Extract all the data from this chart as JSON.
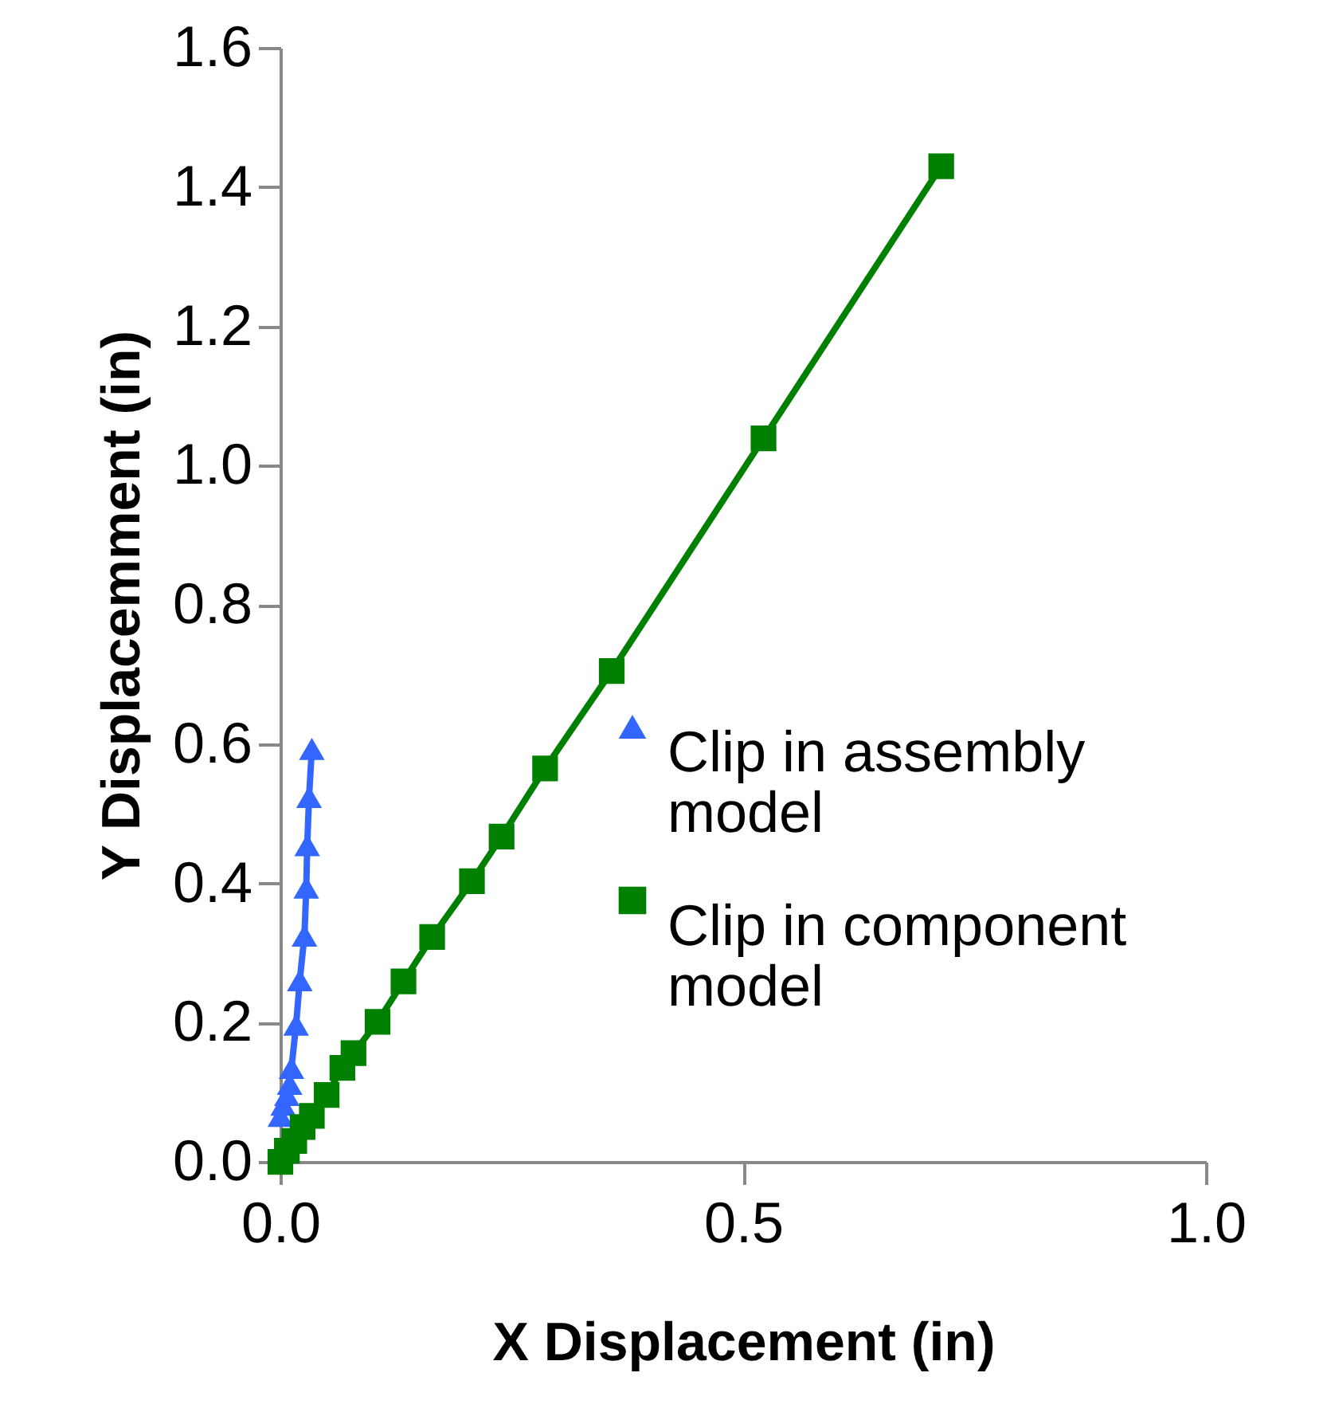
{
  "chart_data": {
    "type": "line",
    "xlabel": "X Displacement (in)",
    "ylabel": "Y Displacemment (in)",
    "xlim": [
      0,
      1
    ],
    "xticks": [
      {
        "value": 0,
        "label": "0.0"
      },
      {
        "value": 0.5,
        "label": "0.5"
      },
      {
        "value": 1,
        "label": "1.0"
      }
    ],
    "ylim": [
      0,
      1.6
    ],
    "yticks": [
      {
        "value": 0,
        "label": "0.0"
      },
      {
        "value": 0.2,
        "label": "0.2"
      },
      {
        "value": 0.4,
        "label": "0.4"
      },
      {
        "value": 0.6,
        "label": "0.6"
      },
      {
        "value": 0.8,
        "label": "0.8"
      },
      {
        "value": 1,
        "label": "1.0"
      },
      {
        "value": 1.2,
        "label": "1.2"
      },
      {
        "value": 1.4,
        "label": "1.4"
      },
      {
        "value": 1.6,
        "label": "1.6"
      }
    ],
    "grid": false,
    "legend": "right",
    "line_style": "solid",
    "series": [
      {
        "name": "Clip in assembly model",
        "color": "#3366ff",
        "marker": "triangle",
        "x": [
          0,
          0.003,
          0.007,
          0.01,
          0.012,
          0.017,
          0.021,
          0.026,
          0.028,
          0.029,
          0.031,
          0.034
        ],
        "values": [
          0.066,
          0.082,
          0.096,
          0.112,
          0.135,
          0.197,
          0.261,
          0.325,
          0.394,
          0.455,
          0.524,
          0.593
        ]
      },
      {
        "name": "Clip in component model",
        "color": "#008000",
        "marker": "square",
        "x": [
          0,
          0.007,
          0.015,
          0.024,
          0.034,
          0.05,
          0.067,
          0.079,
          0.105,
          0.133,
          0.164,
          0.207,
          0.239,
          0.286,
          0.358,
          0.522,
          0.714
        ],
        "values": [
          0,
          0.016,
          0.03,
          0.05,
          0.066,
          0.096,
          0.135,
          0.156,
          0.201,
          0.259,
          0.323,
          0.403,
          0.467,
          0.565,
          0.705,
          1.039,
          1.43
        ]
      }
    ]
  }
}
